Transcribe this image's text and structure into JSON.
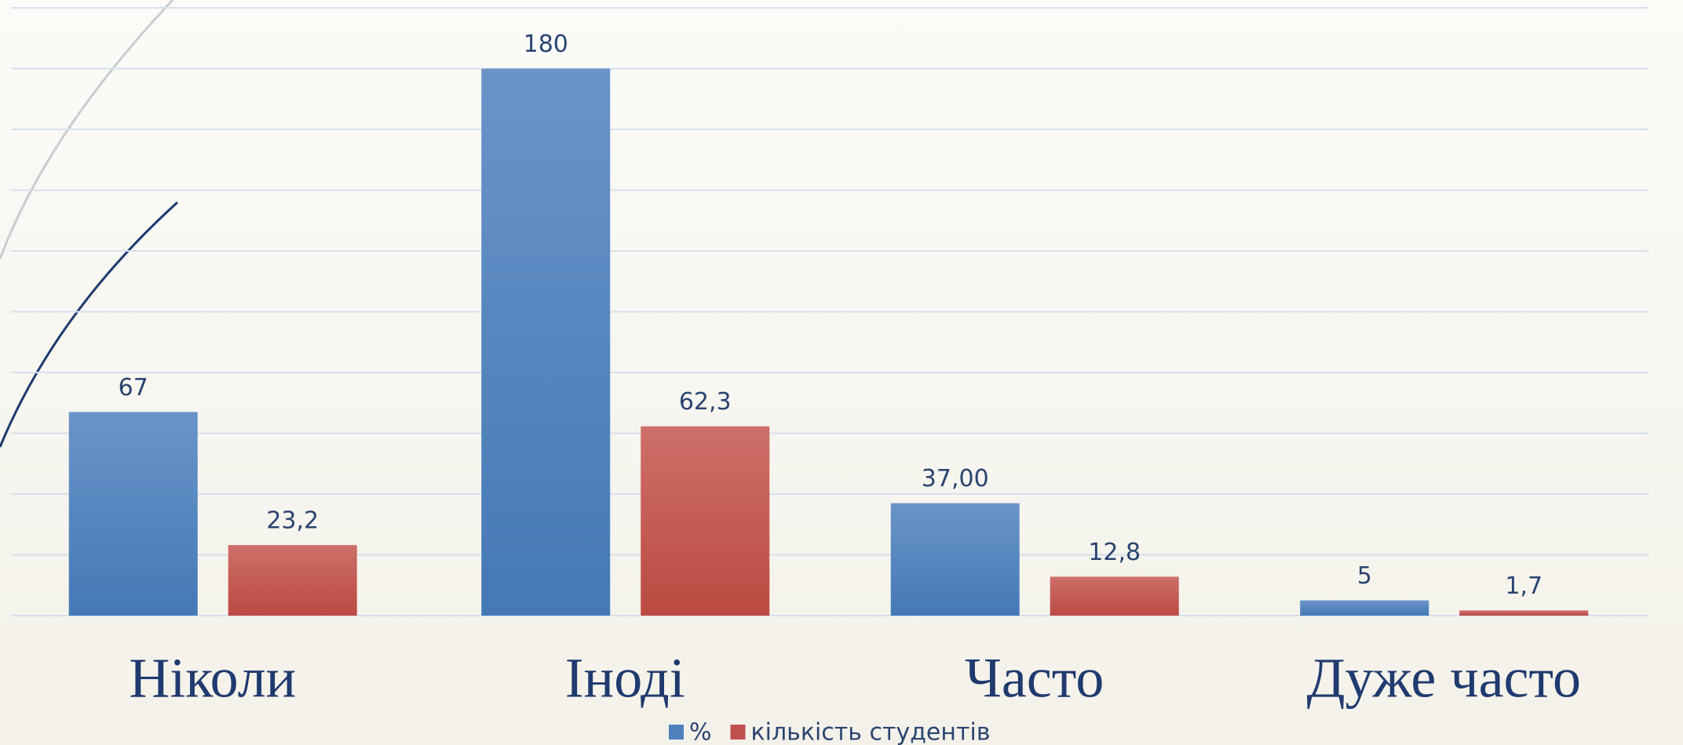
{
  "chart_data": {
    "type": "bar",
    "categories": [
      "Ніколи",
      "Іноді",
      "Часто",
      "Дуже часто"
    ],
    "series": [
      {
        "name": "%",
        "color": "#4f81bd",
        "values": [
          67,
          180,
          37,
          5
        ],
        "value_labels": [
          "67",
          "180",
          "37,00",
          "5"
        ]
      },
      {
        "name": "кількість студентів",
        "color": "#c0504d",
        "values": [
          23.2,
          62.3,
          12.8,
          1.7
        ],
        "value_labels": [
          "23,2",
          "62,3",
          "12,8",
          "1,7"
        ]
      }
    ],
    "ylim": [
      0,
      200
    ],
    "yticks": [
      0,
      20,
      40,
      60,
      80,
      100,
      120,
      140,
      160,
      180,
      200
    ],
    "grid": true,
    "legend": "bottom"
  }
}
